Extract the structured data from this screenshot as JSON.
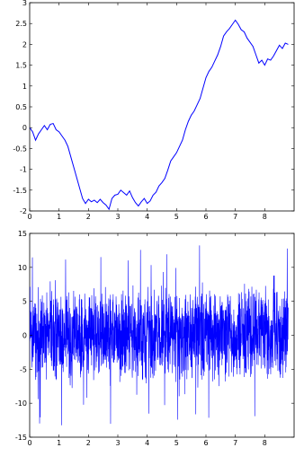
{
  "chart_data": [
    {
      "type": "line",
      "title": "",
      "xlabel": "",
      "ylabel": "",
      "xlim": [
        0,
        9
      ],
      "ylim": [
        -2,
        3
      ],
      "grid": false,
      "line_color": "#0000ff",
      "x_ticks": [
        0,
        1,
        2,
        3,
        4,
        5,
        6,
        7,
        8
      ],
      "x_tick_labels": [
        "0",
        "1",
        "2",
        "3",
        "4",
        "5",
        "6",
        "7",
        "8"
      ],
      "y_ticks": [
        -2,
        -1.5,
        -1,
        -0.5,
        0,
        0.5,
        1,
        1.5,
        2,
        2.5,
        3
      ],
      "y_tick_labels": [
        "-2",
        "-1.5",
        "-1",
        "-0.5",
        "0",
        "0.5",
        "1",
        "1.5",
        "2",
        "2.5",
        "3"
      ],
      "series": [
        {
          "x": [
            0,
            0.1,
            0.2,
            0.3,
            0.4,
            0.5,
            0.6,
            0.7,
            0.8,
            0.9,
            1.0,
            1.1,
            1.2,
            1.3,
            1.4,
            1.5,
            1.6,
            1.7,
            1.8,
            1.9,
            2.0,
            2.1,
            2.2,
            2.3,
            2.4,
            2.5,
            2.6,
            2.7,
            2.8,
            2.9,
            3.0,
            3.1,
            3.2,
            3.3,
            3.4,
            3.5,
            3.6,
            3.7,
            3.8,
            3.9,
            4.0,
            4.1,
            4.2,
            4.3,
            4.4,
            4.5,
            4.6,
            4.7,
            4.8,
            4.9,
            5.0,
            5.1,
            5.2,
            5.3,
            5.4,
            5.5,
            5.6,
            5.7,
            5.8,
            5.9,
            6.0,
            6.1,
            6.2,
            6.3,
            6.4,
            6.5,
            6.6,
            6.7,
            6.8,
            6.9,
            7.0,
            7.1,
            7.2,
            7.3,
            7.4,
            7.5,
            7.6,
            7.7,
            7.8,
            7.9,
            8.0,
            8.1,
            8.2,
            8.3,
            8.4,
            8.5,
            8.6,
            8.7,
            8.8
          ],
          "y": [
            0,
            -0.1,
            -0.3,
            -0.15,
            -0.05,
            0.05,
            -0.05,
            0.08,
            0.1,
            -0.05,
            -0.1,
            -0.2,
            -0.3,
            -0.45,
            -0.7,
            -0.95,
            -1.2,
            -1.45,
            -1.7,
            -1.82,
            -1.72,
            -1.78,
            -1.74,
            -1.8,
            -1.72,
            -1.8,
            -1.86,
            -1.96,
            -1.7,
            -1.62,
            -1.6,
            -1.5,
            -1.56,
            -1.62,
            -1.52,
            -1.68,
            -1.8,
            -1.88,
            -1.78,
            -1.7,
            -1.82,
            -1.76,
            -1.62,
            -1.55,
            -1.4,
            -1.32,
            -1.22,
            -1.02,
            -0.8,
            -0.7,
            -0.6,
            -0.45,
            -0.3,
            -0.05,
            0.15,
            0.3,
            0.4,
            0.55,
            0.7,
            0.95,
            1.2,
            1.35,
            1.45,
            1.6,
            1.75,
            1.95,
            2.2,
            2.3,
            2.38,
            2.48,
            2.58,
            2.48,
            2.35,
            2.3,
            2.15,
            2.05,
            1.95,
            1.75,
            1.55,
            1.62,
            1.5,
            1.65,
            1.62,
            1.72,
            1.85,
            1.98,
            1.9,
            2.03,
            2.0
          ]
        }
      ]
    },
    {
      "type": "line",
      "title": "",
      "xlabel": "",
      "ylabel": "",
      "xlim": [
        0,
        9
      ],
      "ylim": [
        -15,
        15
      ],
      "grid": false,
      "line_color": "#0000ff",
      "description_of_series": "dense noise signal, most values between -6 and 6, spikes reaching about ±13",
      "x_ticks": [
        0,
        1,
        2,
        3,
        4,
        5,
        6,
        7,
        8
      ],
      "x_tick_labels": [
        "0",
        "1",
        "2",
        "3",
        "4",
        "5",
        "6",
        "7",
        "8"
      ],
      "y_ticks": [
        -15,
        -10,
        -5,
        0,
        5,
        10,
        15
      ],
      "y_tick_labels": [
        "-15",
        "-10",
        "-5",
        "0",
        "5",
        "10",
        "15"
      ],
      "series": [
        {
          "x_range": [
            0,
            8.8
          ],
          "n_points": 1800,
          "typical_amplitude": 5,
          "max_amplitude": 13.5,
          "seed": 7
        }
      ]
    }
  ]
}
